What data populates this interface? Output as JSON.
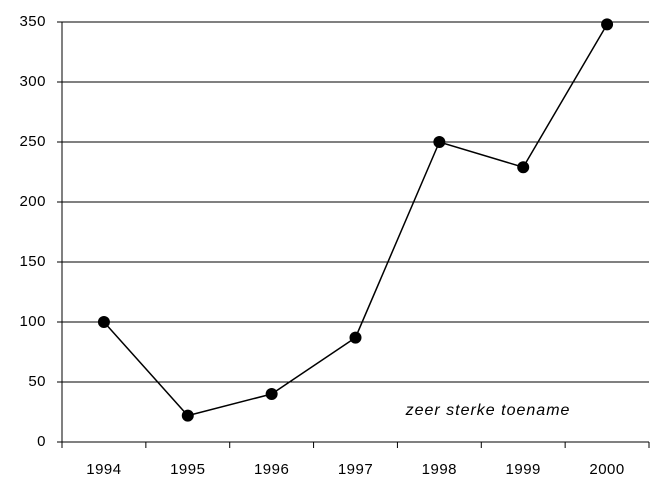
{
  "chart_data": {
    "type": "line",
    "categories": [
      "1994",
      "1995",
      "1996",
      "1997",
      "1998",
      "1999",
      "2000"
    ],
    "values": [
      100,
      22,
      40,
      87,
      250,
      229,
      348
    ],
    "color": "#000000",
    "ylim": [
      0,
      350
    ],
    "yticks": [
      0,
      50,
      100,
      150,
      200,
      250,
      300,
      350
    ],
    "grid": true,
    "annotation": "zeer sterke toename"
  }
}
